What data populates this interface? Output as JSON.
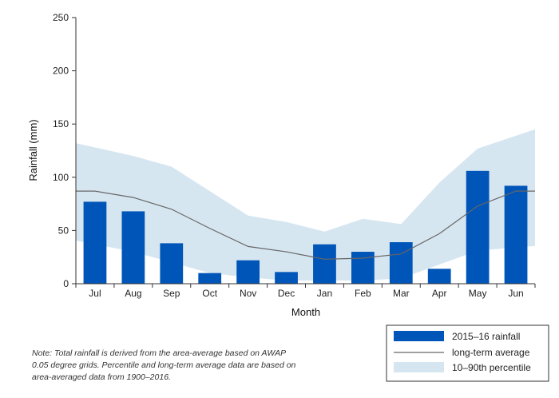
{
  "chart_data": {
    "type": "bar",
    "title": "",
    "xlabel": "Month",
    "ylabel": "Rainfall (mm)",
    "ylim": [
      0,
      250
    ],
    "yticks": [
      0,
      50,
      100,
      150,
      200,
      250
    ],
    "categories": [
      "Jul",
      "Aug",
      "Sep",
      "Oct",
      "Nov",
      "Dec",
      "Jan",
      "Feb",
      "Mar",
      "Apr",
      "May",
      "Jun"
    ],
    "series": [
      {
        "name": "2015–16 rainfall",
        "kind": "bar",
        "color": "#0055b8",
        "values": [
          77,
          68,
          38,
          10,
          22,
          11,
          37,
          30,
          39,
          14,
          106,
          92
        ]
      },
      {
        "name": "long-term average",
        "kind": "line",
        "color": "#666666",
        "values": [
          87,
          81,
          70,
          52,
          35,
          30,
          23,
          24,
          28,
          47,
          73,
          87
        ]
      },
      {
        "name": "10–90th percentile",
        "kind": "band",
        "color": "#d6e6f1",
        "lower": [
          37,
          30,
          20,
          10,
          6,
          3,
          3,
          3,
          5,
          18,
          31,
          34
        ],
        "upper": [
          128,
          120,
          110,
          87,
          64,
          58,
          49,
          61,
          56,
          95,
          127,
          139
        ]
      }
    ],
    "grid": false,
    "legend_position": "bottom-right"
  },
  "note": "Note: Total rainfall is derived from the area-average based on AWAP 0.05 degree grids. Percentile and long-term average data are based on area-averaged data from 1900–2016."
}
